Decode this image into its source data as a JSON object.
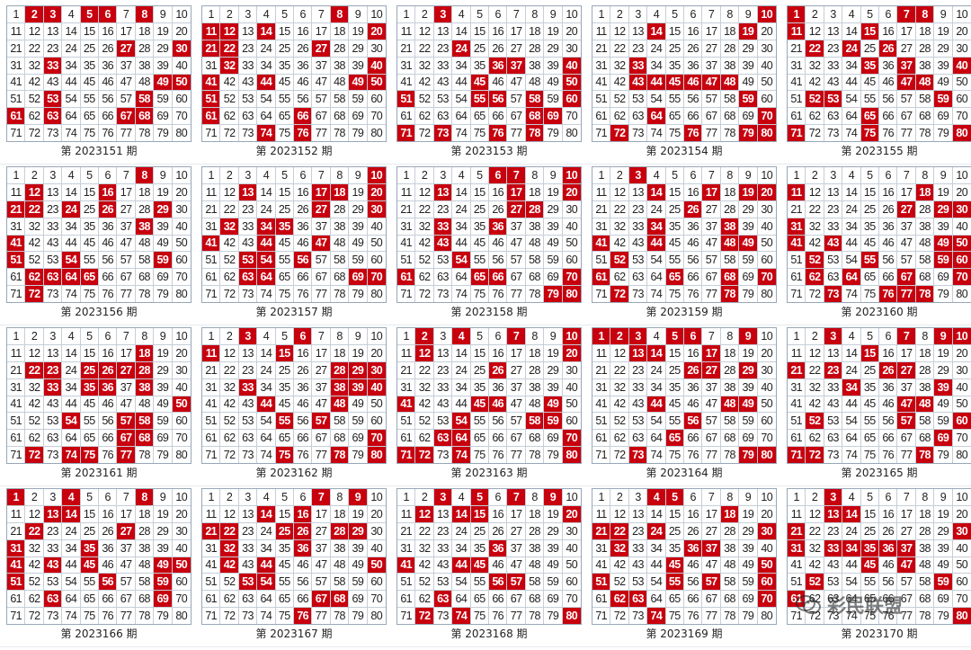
{
  "draws": [
    {
      "label": "第 2023151 期",
      "hits": [
        2,
        3,
        5,
        6,
        8,
        27,
        30,
        33,
        49,
        50,
        53,
        58,
        61,
        63,
        67,
        68
      ]
    },
    {
      "label": "第 2023152 期",
      "hits": [
        8,
        11,
        12,
        14,
        20,
        21,
        22,
        27,
        32,
        40,
        41,
        44,
        49,
        50,
        51,
        61,
        66,
        74,
        76
      ]
    },
    {
      "label": "第 2023153 期",
      "hits": [
        3,
        24,
        36,
        37,
        40,
        45,
        50,
        51,
        55,
        56,
        58,
        60,
        68,
        69,
        71,
        73,
        76,
        78
      ]
    },
    {
      "label": "第 2023154 期",
      "hits": [
        10,
        14,
        19,
        33,
        43,
        44,
        45,
        46,
        47,
        48,
        59,
        64,
        70,
        72,
        76,
        79,
        80
      ]
    },
    {
      "label": "第 2023155 期",
      "hits": [
        1,
        7,
        8,
        11,
        15,
        22,
        24,
        26,
        35,
        37,
        40,
        47,
        48,
        52,
        53,
        59,
        65,
        71,
        75,
        80
      ]
    },
    {
      "label": "第 2023156 期",
      "hits": [
        8,
        12,
        16,
        21,
        22,
        24,
        26,
        29,
        38,
        41,
        51,
        54,
        59,
        62,
        63,
        64,
        65,
        72
      ]
    },
    {
      "label": "第 2023157 期",
      "hits": [
        10,
        13,
        17,
        18,
        20,
        27,
        30,
        32,
        34,
        35,
        41,
        44,
        47,
        53,
        54,
        56,
        63,
        64,
        69,
        70
      ]
    },
    {
      "label": "第 2023158 期",
      "hits": [
        6,
        7,
        10,
        13,
        17,
        20,
        27,
        28,
        33,
        36,
        43,
        54,
        61,
        65,
        66,
        70,
        79,
        80
      ]
    },
    {
      "label": "第 2023159 期",
      "hits": [
        3,
        14,
        17,
        19,
        20,
        26,
        34,
        38,
        41,
        44,
        48,
        49,
        52,
        61,
        65,
        68,
        70,
        72,
        78
      ]
    },
    {
      "label": "第 2023160 期",
      "hits": [
        11,
        18,
        27,
        29,
        30,
        31,
        41,
        43,
        49,
        50,
        52,
        55,
        59,
        60,
        62,
        64,
        67,
        70,
        73,
        76,
        77,
        78
      ]
    },
    {
      "label": "第 2023161 期",
      "hits": [
        18,
        22,
        23,
        25,
        26,
        27,
        28,
        33,
        35,
        36,
        38,
        50,
        54,
        57,
        58,
        67,
        68,
        72,
        74,
        75,
        77
      ]
    },
    {
      "label": "第 2023162 期",
      "hits": [
        3,
        6,
        11,
        15,
        28,
        29,
        30,
        33,
        38,
        39,
        40,
        44,
        48,
        55,
        57,
        70,
        75,
        78,
        80
      ]
    },
    {
      "label": "第 2023163 期",
      "hits": [
        2,
        4,
        7,
        10,
        12,
        20,
        26,
        41,
        45,
        46,
        49,
        54,
        58,
        59,
        63,
        64,
        70,
        71,
        72,
        74,
        80
      ]
    },
    {
      "label": "第 2023164 期",
      "hits": [
        1,
        2,
        3,
        5,
        6,
        9,
        13,
        14,
        17,
        26,
        27,
        29,
        44,
        48,
        49,
        56,
        65,
        73,
        79,
        80
      ]
    },
    {
      "label": "第 2023165 期",
      "hits": [
        3,
        7,
        9,
        10,
        15,
        21,
        23,
        26,
        27,
        34,
        39,
        47,
        48,
        52,
        57,
        60,
        69,
        71,
        72,
        78
      ]
    },
    {
      "label": "第 2023166 期",
      "hits": [
        1,
        4,
        8,
        13,
        14,
        22,
        27,
        31,
        35,
        41,
        43,
        45,
        49,
        50,
        51,
        56,
        59,
        63,
        69
      ]
    },
    {
      "label": "第 2023167 期",
      "hits": [
        7,
        9,
        14,
        16,
        21,
        22,
        25,
        26,
        28,
        29,
        32,
        36,
        42,
        44,
        50,
        53,
        54,
        67,
        68,
        76
      ]
    },
    {
      "label": "第 2023168 期",
      "hits": [
        3,
        5,
        7,
        9,
        12,
        14,
        15,
        20,
        36,
        41,
        44,
        45,
        56,
        57,
        63,
        72,
        74,
        80
      ]
    },
    {
      "label": "第 2023169 期",
      "hits": [
        4,
        5,
        18,
        21,
        22,
        24,
        30,
        32,
        36,
        37,
        45,
        50,
        51,
        55,
        57,
        60,
        62,
        63,
        70,
        74
      ]
    },
    {
      "label": "第 2023170 期",
      "hits": [
        3,
        13,
        14,
        21,
        30,
        31,
        33,
        34,
        35,
        36,
        37,
        45,
        47,
        52,
        59,
        61,
        80
      ]
    }
  ],
  "colors": {
    "hit_bg": "#c8000e",
    "hit_text": "#ffffff",
    "grid_border": "#98a7b6"
  },
  "watermark": {
    "text": "彩民联盟",
    "icon": "wechat-bubble-icon"
  }
}
